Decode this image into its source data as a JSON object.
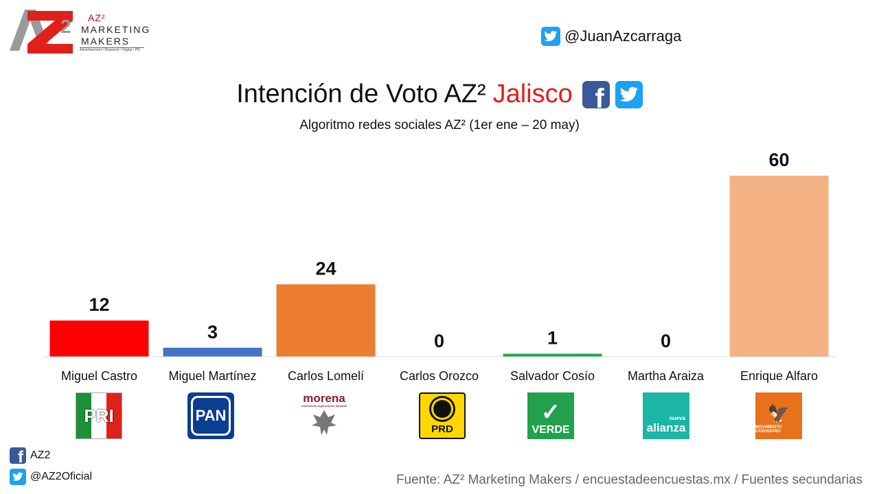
{
  "header": {
    "logo": {
      "superscript": "AZ²",
      "line1": "MARKETING",
      "line2": "MAKERS",
      "tagline": "Advertisement • Research • Digital • PR",
      "icon": "az2-logo"
    },
    "twitter_handle": "@JuanAzcarraga",
    "title_main": "Intención de Voto AZ²",
    "title_region": "Jalisco",
    "subtitle": "Algoritmo redes sociales AZ² (1er ene – 20 may)"
  },
  "colors": {
    "title_accent": "#e0201b",
    "facebook": "#3b5998",
    "twitter": "#1da1f2",
    "source_text": "#666666"
  },
  "chart_data": {
    "type": "bar",
    "title": "Intención de Voto AZ² Jalisco",
    "subtitle": "Algoritmo redes sociales AZ² (1er ene – 20 may)",
    "categories": [
      "Miguel Castro",
      "Miguel Martínez",
      "Carlos Lomelí",
      "Carlos Orozco",
      "Salvador Cosío",
      "Martha Araiza",
      "Enrique Alfaro"
    ],
    "values": [
      12,
      3,
      24,
      0,
      1,
      0,
      60
    ],
    "value_labels": [
      "12",
      "3",
      "24",
      "0",
      "1",
      "0",
      "60"
    ],
    "bar_colors": [
      "#ff0000",
      "#4472c4",
      "#ed7d31",
      "#ffd700",
      "#1aa84b",
      "#1bb6a5",
      "#f4b183"
    ],
    "ylim": [
      0,
      60
    ],
    "xlabel": "",
    "ylabel": "",
    "grid": false,
    "legend": "none"
  },
  "parties": [
    {
      "icon": "pri-logo",
      "label": "PRI"
    },
    {
      "icon": "pan-logo",
      "label": "PAN"
    },
    {
      "icon": "morena-logo",
      "label": "morena",
      "sublabel": "movimiento regeneración nacional"
    },
    {
      "icon": "prd-logo",
      "label": "PRD"
    },
    {
      "icon": "verde-logo",
      "label": "VERDE"
    },
    {
      "icon": "nueva-alianza-logo",
      "label": "alianza",
      "prefix": "nueva"
    },
    {
      "icon": "movimiento-ciudadano-logo",
      "label": "MOVIMIENTO CIUDADANO"
    }
  ],
  "footer": {
    "facebook_label": "AZ2",
    "twitter_label": "@AZ2Oficial",
    "source": "Fuente: AZ² Marketing Makers / encuestadeencuestas.mx / Fuentes secundarias"
  }
}
